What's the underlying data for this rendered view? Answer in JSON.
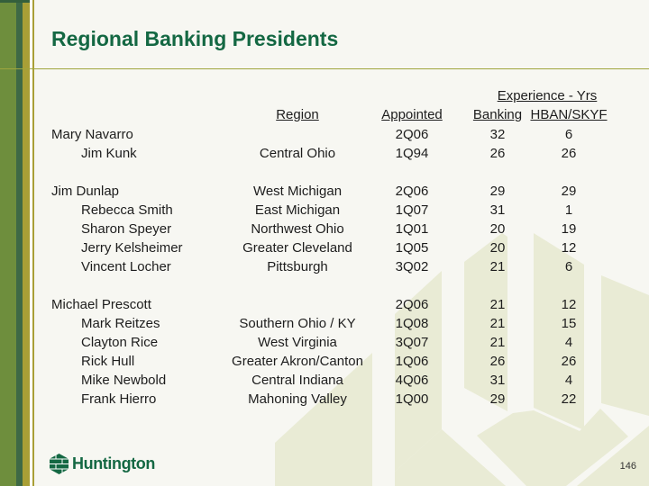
{
  "slide": {
    "title": "Regional Banking Presidents",
    "page_number": "146"
  },
  "logo": {
    "text": "Huntington",
    "icon": "huntington-honeycomb-icon"
  },
  "table": {
    "experience_header": "Experience - Yrs",
    "columns": [
      "Region",
      "Appointed",
      "Banking",
      "HBAN/SKYF"
    ],
    "rows": [
      {
        "name": "Mary Navarro",
        "indent": false,
        "region": "",
        "appointed": "2Q06",
        "banking": "32",
        "hban_skyf": "6"
      },
      {
        "name": "Jim Kunk",
        "indent": true,
        "region": "Central Ohio",
        "appointed": "1Q94",
        "banking": "26",
        "hban_skyf": "26"
      },
      {
        "blank": true
      },
      {
        "name": "Jim Dunlap",
        "indent": false,
        "region": "West Michigan",
        "appointed": "2Q06",
        "banking": "29",
        "hban_skyf": "29"
      },
      {
        "name": "Rebecca Smith",
        "indent": true,
        "region": "East Michigan",
        "appointed": "1Q07",
        "banking": "31",
        "hban_skyf": "1"
      },
      {
        "name": "Sharon Speyer",
        "indent": true,
        "region": "Northwest Ohio",
        "appointed": "1Q01",
        "banking": "20",
        "hban_skyf": "19"
      },
      {
        "name": "Jerry Kelsheimer",
        "indent": true,
        "region": "Greater Cleveland",
        "appointed": "1Q05",
        "banking": "20",
        "hban_skyf": "12"
      },
      {
        "name": "Vincent Locher",
        "indent": true,
        "region": "Pittsburgh",
        "appointed": "3Q02",
        "banking": "21",
        "hban_skyf": "6"
      },
      {
        "blank": true
      },
      {
        "name": "Michael Prescott",
        "indent": false,
        "region": "",
        "appointed": "2Q06",
        "banking": "21",
        "hban_skyf": "12"
      },
      {
        "name": "Mark Reitzes",
        "indent": true,
        "region": "Southern Ohio / KY",
        "appointed": "1Q08",
        "banking": "21",
        "hban_skyf": "15"
      },
      {
        "name": "Clayton Rice",
        "indent": true,
        "region": "West Virginia",
        "appointed": "3Q07",
        "banking": "21",
        "hban_skyf": "4"
      },
      {
        "name": "Rick Hull",
        "indent": true,
        "region": "Greater Akron/Canton",
        "appointed": "1Q06",
        "banking": "26",
        "hban_skyf": "26"
      },
      {
        "name": "Mike Newbold",
        "indent": true,
        "region": "Central Indiana",
        "appointed": "4Q06",
        "banking": "31",
        "hban_skyf": "4"
      },
      {
        "name": "Frank Hierro",
        "indent": true,
        "region": "Mahoning Valley",
        "appointed": "1Q00",
        "banking": "29",
        "hban_skyf": "22"
      }
    ]
  },
  "colors": {
    "brand_green": "#146843",
    "stripe_green": "#6e8e3d",
    "stripe_dark_green": "#3e6945",
    "stripe_gold": "#a99f36",
    "divider_olive": "#9fa63e",
    "watermark": "#e9ebd5",
    "background": "#f7f7f2",
    "text": "#1d1d1d"
  }
}
